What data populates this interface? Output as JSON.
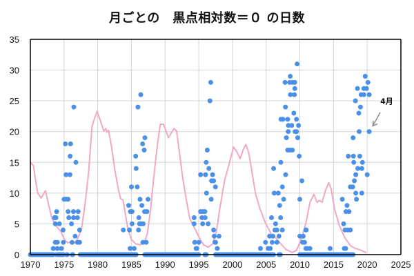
{
  "chart_data": {
    "type": "scatter",
    "title": "月ごとの　黒点相対数＝０ の日数",
    "xlabel": "",
    "ylabel": "",
    "xlim": [
      1970,
      2025
    ],
    "ylim": [
      0,
      35
    ],
    "x_ticks": [
      1970,
      1975,
      1980,
      1985,
      1990,
      1995,
      2000,
      2005,
      2010,
      2015,
      2020,
      2025
    ],
    "y_ticks": [
      0,
      5,
      10,
      15,
      20,
      25,
      30,
      35
    ],
    "grid": true,
    "legend": "none",
    "colors": {
      "points": "#4a90e8",
      "smoothed_line": "#f2a7c8",
      "grid": "#d4d4d4",
      "axis": "#000000",
      "arrow": "#8c8c8c"
    },
    "annotation": {
      "text": "4月",
      "target": [
        2020.3,
        20
      ]
    },
    "series": [
      {
        "name": "spotless_days_per_month",
        "kind": "scatter",
        "zero_spans": [
          [
            1970.0,
            1973.4
          ],
          [
            1973.9,
            1974.9
          ],
          [
            1975.4,
            1975.5
          ],
          [
            1976.2,
            1976.3
          ],
          [
            1977.4,
            1985.7
          ],
          [
            1987.0,
            1995.0
          ],
          [
            1995.9,
            1996.1
          ],
          [
            1997.5,
            2006.1
          ],
          [
            2006.9,
            2007.1
          ],
          [
            2010.0,
            2017.9
          ]
        ],
        "points": [
          [
            1973.4,
            1
          ],
          [
            1974.0,
            1
          ],
          [
            1974.6,
            1
          ],
          [
            1973.7,
            2
          ],
          [
            1974.0,
            2
          ],
          [
            1974.9,
            2
          ],
          [
            1976.2,
            2
          ],
          [
            1977.0,
            2
          ],
          [
            1977.3,
            2
          ],
          [
            1976.65,
            3
          ],
          [
            1974.85,
            4
          ],
          [
            1977.3,
            4
          ],
          [
            1973.7,
            5
          ],
          [
            1974.3,
            5
          ],
          [
            1976.1,
            5
          ],
          [
            1973.6,
            6
          ],
          [
            1973.8,
            6
          ],
          [
            1975.7,
            6
          ],
          [
            1976.4,
            6
          ],
          [
            1977.0,
            6
          ],
          [
            1973.9,
            7
          ],
          [
            1975.6,
            7
          ],
          [
            1976.4,
            7
          ],
          [
            1977.1,
            7
          ],
          [
            1975.0,
            9
          ],
          [
            1975.3,
            9
          ],
          [
            1975.6,
            9
          ],
          [
            1975.3,
            13
          ],
          [
            1975.87,
            13
          ],
          [
            1976.76,
            15
          ],
          [
            1975.9,
            16
          ],
          [
            1975.2,
            18
          ],
          [
            1975.97,
            18
          ],
          [
            1976.45,
            24
          ],
          [
            1984.8,
            1
          ],
          [
            1985.4,
            1
          ],
          [
            1986.7,
            2
          ],
          [
            1987.2,
            2
          ],
          [
            1983.8,
            4
          ],
          [
            1984.7,
            4
          ],
          [
            1986.05,
            4
          ],
          [
            1985.1,
            5
          ],
          [
            1986.2,
            5
          ],
          [
            1986.45,
            5
          ],
          [
            1986.75,
            5
          ],
          [
            1986.1,
            6
          ],
          [
            1984.85,
            7
          ],
          [
            1985.1,
            7
          ],
          [
            1986.95,
            7
          ],
          [
            1987.3,
            7
          ],
          [
            1984.6,
            8
          ],
          [
            1986.55,
            8
          ],
          [
            1986.27,
            9
          ],
          [
            1987.46,
            9
          ],
          [
            1985.0,
            11
          ],
          [
            1985.87,
            11
          ],
          [
            1985.7,
            14
          ],
          [
            1985.64,
            16
          ],
          [
            1986.9,
            17
          ],
          [
            1986.66,
            18
          ],
          [
            1987.0,
            19
          ],
          [
            1985.97,
            24
          ],
          [
            1986.39,
            26
          ],
          [
            1994.6,
            1
          ],
          [
            1994.7,
            1
          ],
          [
            1997.75,
            1
          ],
          [
            1994.4,
            2
          ],
          [
            1995.0,
            2
          ],
          [
            1997.4,
            2
          ],
          [
            1997.5,
            2
          ],
          [
            1997.3,
            3
          ],
          [
            1998.0,
            3
          ],
          [
            1997.2,
            4
          ],
          [
            1994.3,
            5
          ],
          [
            1995.57,
            5
          ],
          [
            1996.39,
            5
          ],
          [
            1994.3,
            6
          ],
          [
            1995.47,
            6
          ],
          [
            1995.94,
            6
          ],
          [
            1995.27,
            7
          ],
          [
            1995.6,
            7
          ],
          [
            1995.9,
            7
          ],
          [
            1996.84,
            9
          ],
          [
            1996.15,
            10
          ],
          [
            1997.47,
            11
          ],
          [
            1996.9,
            12
          ],
          [
            1997.2,
            12
          ],
          [
            1995.27,
            13
          ],
          [
            1996.0,
            13
          ],
          [
            1997.04,
            13
          ],
          [
            1996.5,
            14
          ],
          [
            1996.1,
            15
          ],
          [
            1996.26,
            17
          ],
          [
            1996.66,
            25
          ],
          [
            1996.77,
            28
          ],
          [
            2004.15,
            1
          ],
          [
            2005.3,
            1
          ],
          [
            2005.6,
            1
          ],
          [
            2011.1,
            1
          ],
          [
            2004.9,
            2
          ],
          [
            2005.9,
            2
          ],
          [
            2006.6,
            2
          ],
          [
            2010.4,
            2
          ],
          [
            2010.7,
            2
          ],
          [
            2005.5,
            3
          ],
          [
            2006.0,
            3
          ],
          [
            2006.9,
            3
          ],
          [
            2010.0,
            3
          ],
          [
            2010.5,
            3
          ],
          [
            2006.3,
            4
          ],
          [
            2006.6,
            4
          ],
          [
            2007.4,
            4
          ],
          [
            2010.95,
            4
          ],
          [
            2006.4,
            5
          ],
          [
            2005.8,
            6
          ],
          [
            2007.15,
            6
          ],
          [
            2007.0,
            8
          ],
          [
            2006.2,
            10
          ],
          [
            2006.8,
            10
          ],
          [
            2007.6,
            9
          ],
          [
            2010.0,
            9
          ],
          [
            2007.4,
            11
          ],
          [
            2010.3,
            12
          ],
          [
            2007.9,
            13
          ],
          [
            2006.1,
            14
          ],
          [
            2007.18,
            15
          ],
          [
            2009.9,
            16
          ],
          [
            2008.2,
            17
          ],
          [
            2008.5,
            17
          ],
          [
            2008.9,
            17
          ],
          [
            2008.0,
            19
          ],
          [
            2009.68,
            19
          ],
          [
            2008.27,
            20
          ],
          [
            2009.3,
            20
          ],
          [
            2009.5,
            20
          ],
          [
            2008.3,
            21
          ],
          [
            2008.8,
            21
          ],
          [
            2009.8,
            21
          ],
          [
            2007.2,
            22
          ],
          [
            2007.5,
            22
          ],
          [
            2008.2,
            22
          ],
          [
            2009.5,
            22
          ],
          [
            2009.1,
            23
          ],
          [
            2007.86,
            24
          ],
          [
            2008.6,
            26
          ],
          [
            2009.2,
            26
          ],
          [
            2009.26,
            27
          ],
          [
            2007.8,
            28
          ],
          [
            2008.5,
            28
          ],
          [
            2008.9,
            28
          ],
          [
            2009.25,
            28
          ],
          [
            2008.58,
            29
          ],
          [
            2009.6,
            31
          ],
          [
            2010.9,
            1
          ],
          [
            2011.5,
            1
          ],
          [
            2014.5,
            1
          ],
          [
            2016.6,
            1
          ],
          [
            2016.8,
            1
          ],
          [
            2010.5,
            3
          ],
          [
            2010.9,
            4
          ],
          [
            2016.7,
            4
          ],
          [
            2017.1,
            4
          ],
          [
            2017.5,
            4
          ],
          [
            2016.5,
            5
          ],
          [
            2016.85,
            7
          ],
          [
            2017.3,
            7
          ],
          [
            2017.0,
            8
          ],
          [
            2016.3,
            9
          ],
          [
            2018.4,
            9
          ],
          [
            2018.3,
            10
          ],
          [
            2019.2,
            10
          ],
          [
            2017.5,
            11
          ],
          [
            2017.85,
            11
          ],
          [
            2018.1,
            12
          ],
          [
            2018.3,
            13
          ],
          [
            2020.0,
            13
          ],
          [
            2018.6,
            14
          ],
          [
            2019.2,
            14
          ],
          [
            2018.0,
            15
          ],
          [
            2019.3,
            15
          ],
          [
            2017.2,
            16
          ],
          [
            2017.95,
            16
          ],
          [
            2018.9,
            16
          ],
          [
            2017.9,
            19
          ],
          [
            2018.8,
            20
          ],
          [
            2020.3,
            20
          ],
          [
            2018.75,
            23
          ],
          [
            2019.0,
            24
          ],
          [
            2018.25,
            25
          ],
          [
            2019.1,
            26
          ],
          [
            2019.5,
            26
          ],
          [
            2020.3,
            26
          ],
          [
            2018.55,
            27
          ],
          [
            2019.5,
            27
          ],
          [
            2019.9,
            27
          ],
          [
            2020.1,
            28
          ],
          [
            2019.7,
            29
          ]
        ]
      },
      {
        "name": "smoothed_reference",
        "kind": "line",
        "points": [
          [
            1970.0,
            15.0
          ],
          [
            1970.45,
            14.5
          ],
          [
            1970.8,
            11.9
          ],
          [
            1971.1,
            10.0
          ],
          [
            1971.6,
            9.2
          ],
          [
            1972.25,
            10.4
          ],
          [
            1972.7,
            8.1
          ],
          [
            1973.2,
            5.9
          ],
          [
            1973.85,
            4.6
          ],
          [
            1974.5,
            3.8
          ],
          [
            1975.05,
            2.5
          ],
          [
            1975.55,
            1.9
          ],
          [
            1976.05,
            2.1
          ],
          [
            1976.6,
            1.9
          ],
          [
            1977.0,
            2.5
          ],
          [
            1977.6,
            4.2
          ],
          [
            1978.1,
            8.1
          ],
          [
            1978.65,
            13.4
          ],
          [
            1979.15,
            20.8
          ],
          [
            1979.5,
            22.1
          ],
          [
            1979.9,
            23.3
          ],
          [
            1980.45,
            21.6
          ],
          [
            1980.9,
            20.1
          ],
          [
            1981.2,
            20.5
          ],
          [
            1981.35,
            19.9
          ],
          [
            1981.6,
            20.2
          ],
          [
            1982.05,
            17.5
          ],
          [
            1982.55,
            13.7
          ],
          [
            1983.1,
            10.4
          ],
          [
            1983.4,
            9.1
          ],
          [
            1983.75,
            8.9
          ],
          [
            1984.1,
            6.6
          ],
          [
            1984.45,
            4.4
          ],
          [
            1984.95,
            2.5
          ],
          [
            1985.65,
            1.75
          ],
          [
            1986.3,
            1.6
          ],
          [
            1986.85,
            1.9
          ],
          [
            1987.35,
            3.3
          ],
          [
            1987.85,
            7.4
          ],
          [
            1988.35,
            13.0
          ],
          [
            1988.9,
            18.2
          ],
          [
            1989.3,
            21.2
          ],
          [
            1989.75,
            21.2
          ],
          [
            1990.5,
            19.0
          ],
          [
            1991.3,
            20.5
          ],
          [
            1991.7,
            20.1
          ],
          [
            1992.1,
            16.8
          ],
          [
            1992.6,
            12.6
          ],
          [
            1993.15,
            8.9
          ],
          [
            1993.65,
            5.9
          ],
          [
            1994.35,
            4.4
          ],
          [
            1995.0,
            2.9
          ],
          [
            1995.7,
            1.6
          ],
          [
            1996.4,
            1.2
          ],
          [
            1997.05,
            1.75
          ],
          [
            1997.6,
            3.6
          ],
          [
            1998.1,
            7.4
          ],
          [
            1998.8,
            11.9
          ],
          [
            1999.45,
            14.5
          ],
          [
            2000.15,
            17.5
          ],
          [
            2000.65,
            16.7
          ],
          [
            2001.15,
            15.6
          ],
          [
            2001.6,
            17.1
          ],
          [
            2002.0,
            17.9
          ],
          [
            2002.45,
            16.4
          ],
          [
            2002.9,
            13.4
          ],
          [
            2003.4,
            10.0
          ],
          [
            2004.1,
            7.4
          ],
          [
            2004.9,
            5.1
          ],
          [
            2005.8,
            3.3
          ],
          [
            2006.45,
            2.7
          ],
          [
            2007.15,
            1.8
          ],
          [
            2008.0,
            0.8
          ],
          [
            2008.85,
            0.35
          ],
          [
            2009.5,
            0.7
          ],
          [
            2010.2,
            2.5
          ],
          [
            2010.9,
            5.1
          ],
          [
            2011.5,
            8.5
          ],
          [
            2012.1,
            9.8
          ],
          [
            2012.55,
            8.5
          ],
          [
            2012.9,
            8.8
          ],
          [
            2013.3,
            8.5
          ],
          [
            2013.8,
            10.4
          ],
          [
            2014.3,
            11.7
          ],
          [
            2014.65,
            10.7
          ],
          [
            2015.15,
            7.4
          ],
          [
            2015.85,
            4.75
          ],
          [
            2016.7,
            2.7
          ],
          [
            2017.55,
            1.4
          ],
          [
            2018.25,
            1.0
          ],
          [
            2019.1,
            0.7
          ],
          [
            2019.8,
            0.35
          ]
        ]
      }
    ]
  }
}
